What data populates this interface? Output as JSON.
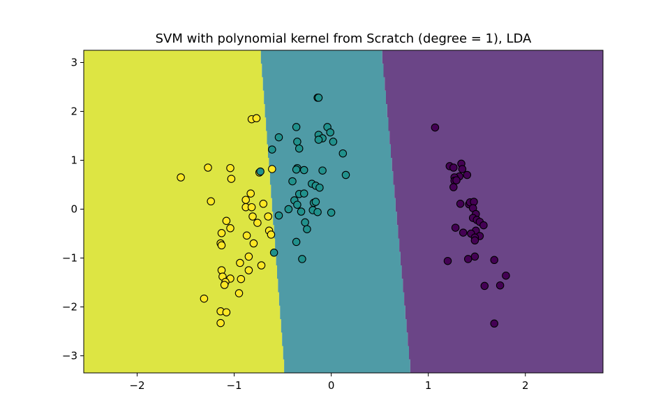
{
  "chart_data": {
    "type": "scatter",
    "title": "SVM with polynomial kernel from Scratch (degree = 1), LDA",
    "xlabel": "",
    "ylabel": "",
    "xlim": [
      -2.55,
      2.8
    ],
    "ylim": [
      -3.35,
      3.25
    ],
    "xticks": [
      -2,
      -1,
      0,
      1,
      2
    ],
    "yticks": [
      -3,
      -2,
      -1,
      0,
      1,
      2,
      3
    ],
    "xtick_labels": [
      "−2",
      "−1",
      "0",
      "1",
      "2"
    ],
    "ytick_labels": [
      "−3",
      "−2",
      "−1",
      "0",
      "1",
      "2",
      "3"
    ],
    "grid": false,
    "legend": "none",
    "colors": {
      "class_yellow": "#fde725",
      "class_teal": "#21918c",
      "class_purple": "#440154",
      "region_yellow": "#dde543",
      "region_teal": "#4f9ba6",
      "region_purple": "#6b4587",
      "point_edge": "#000000"
    },
    "decision_boundaries": [
      {
        "between": [
          "yellow",
          "teal"
        ],
        "x_at_ymax": -0.73,
        "x_at_ymin": -0.48
      },
      {
        "between": [
          "teal",
          "purple"
        ],
        "x_at_ymax": 0.52,
        "x_at_ymin": 0.82
      }
    ],
    "series": [
      {
        "class": "yellow",
        "points": [
          [
            -1.55,
            0.65
          ],
          [
            -1.27,
            0.85
          ],
          [
            -1.24,
            0.16
          ],
          [
            -1.04,
            0.84
          ],
          [
            -1.03,
            0.62
          ],
          [
            -0.82,
            1.84
          ],
          [
            -0.77,
            1.86
          ],
          [
            -0.74,
            0.75
          ],
          [
            -0.61,
            0.82
          ],
          [
            -0.83,
            0.32
          ],
          [
            -0.88,
            0.19
          ],
          [
            -0.88,
            0.04
          ],
          [
            -0.82,
            0.04
          ],
          [
            -0.7,
            0.11
          ],
          [
            -1.08,
            -0.24
          ],
          [
            -1.04,
            -0.39
          ],
          [
            -1.13,
            -0.49
          ],
          [
            -0.81,
            -0.15
          ],
          [
            -0.76,
            -0.28
          ],
          [
            -0.65,
            -0.15
          ],
          [
            -0.64,
            -0.44
          ],
          [
            -0.62,
            -0.52
          ],
          [
            -0.87,
            -0.54
          ],
          [
            -0.8,
            -0.7
          ],
          [
            -1.14,
            -0.7
          ],
          [
            -1.13,
            -0.74
          ],
          [
            -0.85,
            -0.97
          ],
          [
            -0.94,
            -1.1
          ],
          [
            -0.72,
            -1.15
          ],
          [
            -1.13,
            -1.25
          ],
          [
            -0.85,
            -1.25
          ],
          [
            -1.12,
            -1.38
          ],
          [
            -1.04,
            -1.42
          ],
          [
            -0.93,
            -1.43
          ],
          [
            -1.09,
            -1.49
          ],
          [
            -1.1,
            -1.55
          ],
          [
            -0.95,
            -1.72
          ],
          [
            -1.31,
            -1.83
          ],
          [
            -1.14,
            -2.09
          ],
          [
            -1.08,
            -2.11
          ],
          [
            -1.14,
            -2.33
          ]
        ]
      },
      {
        "class": "teal",
        "points": [
          [
            -0.14,
            2.28
          ],
          [
            -0.13,
            2.28
          ],
          [
            -0.04,
            1.68
          ],
          [
            -0.36,
            1.68
          ],
          [
            -0.01,
            1.57
          ],
          [
            -0.54,
            1.47
          ],
          [
            -0.13,
            1.52
          ],
          [
            -0.09,
            1.45
          ],
          [
            -0.13,
            1.42
          ],
          [
            0.02,
            1.38
          ],
          [
            -0.35,
            1.38
          ],
          [
            -0.33,
            1.24
          ],
          [
            -0.61,
            1.22
          ],
          [
            0.12,
            1.14
          ],
          [
            -0.73,
            0.77
          ],
          [
            -0.35,
            0.84
          ],
          [
            -0.36,
            0.81
          ],
          [
            -0.28,
            0.8
          ],
          [
            -0.09,
            0.79
          ],
          [
            0.15,
            0.7
          ],
          [
            -0.4,
            0.57
          ],
          [
            -0.2,
            0.52
          ],
          [
            -0.16,
            0.48
          ],
          [
            -0.12,
            0.44
          ],
          [
            -0.33,
            0.31
          ],
          [
            -0.28,
            0.32
          ],
          [
            -0.38,
            0.18
          ],
          [
            -0.35,
            0.09
          ],
          [
            -0.18,
            0.13
          ],
          [
            -0.16,
            0.15
          ],
          [
            -0.44,
            0.0
          ],
          [
            -0.31,
            -0.05
          ],
          [
            -0.19,
            -0.02
          ],
          [
            -0.14,
            -0.06
          ],
          [
            0.0,
            -0.07
          ],
          [
            -0.54,
            -0.13
          ],
          [
            -0.27,
            -0.27
          ],
          [
            -0.25,
            -0.41
          ],
          [
            -0.36,
            -0.67
          ],
          [
            -0.59,
            -0.89
          ],
          [
            -0.3,
            -1.02
          ]
        ]
      },
      {
        "class": "purple",
        "points": [
          [
            1.07,
            1.67
          ],
          [
            1.22,
            0.88
          ],
          [
            1.26,
            0.85
          ],
          [
            1.34,
            0.93
          ],
          [
            1.35,
            0.82
          ],
          [
            1.4,
            0.7
          ],
          [
            1.32,
            0.67
          ],
          [
            1.27,
            0.65
          ],
          [
            1.27,
            0.58
          ],
          [
            1.29,
            0.59
          ],
          [
            1.26,
            0.45
          ],
          [
            1.33,
            0.11
          ],
          [
            1.42,
            0.1
          ],
          [
            1.43,
            0.14
          ],
          [
            1.47,
            0.15
          ],
          [
            1.46,
            0.02
          ],
          [
            1.49,
            -0.1
          ],
          [
            1.46,
            -0.18
          ],
          [
            1.5,
            -0.22
          ],
          [
            1.53,
            -0.26
          ],
          [
            1.57,
            -0.33
          ],
          [
            1.28,
            -0.38
          ],
          [
            1.49,
            -0.44
          ],
          [
            1.36,
            -0.48
          ],
          [
            1.44,
            -0.5
          ],
          [
            1.53,
            -0.55
          ],
          [
            1.48,
            -0.58
          ],
          [
            1.48,
            -0.64
          ],
          [
            1.48,
            -0.97
          ],
          [
            1.41,
            -1.02
          ],
          [
            1.2,
            -1.06
          ],
          [
            1.68,
            -1.04
          ],
          [
            1.8,
            -1.36
          ],
          [
            1.58,
            -1.57
          ],
          [
            1.74,
            -1.56
          ],
          [
            1.68,
            -2.34
          ]
        ]
      }
    ]
  }
}
